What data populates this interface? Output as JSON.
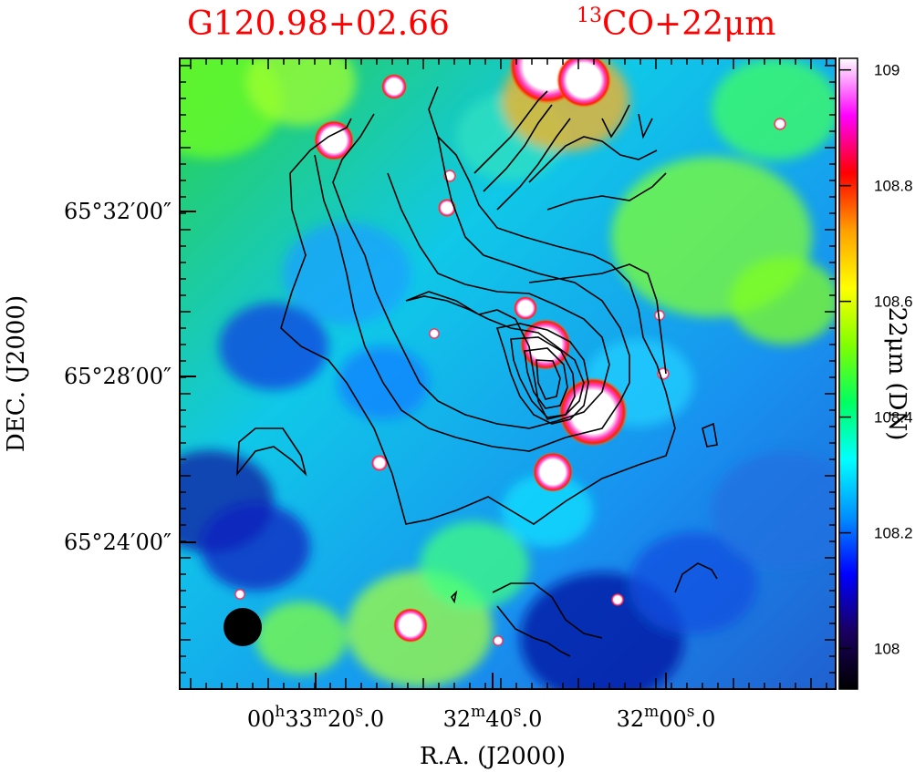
{
  "chart_data": {
    "type": "heatmap",
    "source_name": "G120.98+02.66",
    "title_prefix": "13",
    "title_suffix": "CO+22μm",
    "xlabel": "R.A.  (J2000)",
    "ylabel": "DEC.  (J2000)",
    "colorbar_label": "22μm (DN)",
    "x_ticks": [
      {
        "label": "00h33m20s.0",
        "value": "00:33:20.0"
      },
      {
        "label": "32m40s.0",
        "value": "00:32:40.0"
      },
      {
        "label": "32m00s.0",
        "value": "00:32:00.0"
      }
    ],
    "x_tick_parts": [
      {
        "h": "00",
        "m": "33",
        "s": "20",
        "dec": "0"
      },
      {
        "h": "",
        "m": "32",
        "s": "40",
        "dec": "0"
      },
      {
        "h": "",
        "m": "32",
        "s": "00",
        "dec": "0"
      }
    ],
    "y_ticks": [
      "65°32′00″",
      "65°28′00″",
      "65°24′00″"
    ],
    "colorbar": {
      "range": [
        107.93,
        109.02
      ],
      "ticks": [
        108,
        108.2,
        108.4,
        108.6,
        108.8,
        109
      ],
      "tick_labels": [
        "108",
        "108.2",
        "108.4",
        "108.6",
        "108.8",
        "109"
      ],
      "colormap": [
        "#000000",
        "#1a0060",
        "#0000ff",
        "#0090ff",
        "#00ffff",
        "#00ff60",
        "#80ff00",
        "#ffff00",
        "#ffa000",
        "#ff0000",
        "#ff00ff",
        "#ffffff"
      ]
    },
    "grid": false,
    "contours": "black, 13CO integrated intensity",
    "beam": "filled black circle, bottom-left"
  }
}
